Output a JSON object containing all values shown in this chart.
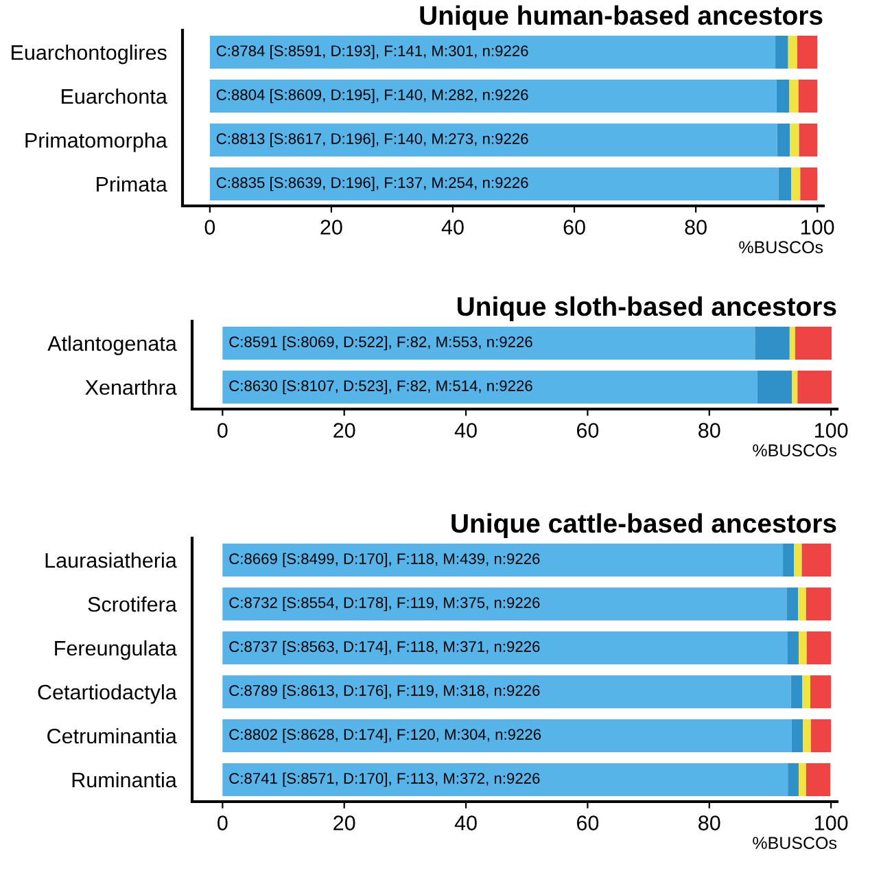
{
  "chart_data": [
    {
      "type": "bar",
      "orientation": "horizontal",
      "stacked": true,
      "title": "Unique human-based ancestors",
      "xlabel": "%BUSCOs",
      "categories": [
        "Euarchontoglires",
        "Euarchonta",
        "Primatomorpha",
        "Primata"
      ],
      "series": [
        {
          "color": "#56b4e9",
          "values": [
            93.1,
            93.3,
            93.4,
            93.6
          ],
          "value_labels": [
            "C:8784 [S:8591, D:193], F:141, M:301, n:9226",
            "C:8804 [S:8609, D:195], F:140, M:282, n:9226",
            "C:8813 [S:8617, D:196], F:140, M:273, n:9226",
            "C:8835 [S:8639, D:196], F:137, M:254, n:9226"
          ]
        },
        {
          "color": "#3090c8",
          "values": [
            2.1,
            2.1,
            2.1,
            2.1
          ]
        },
        {
          "color": "#f0e442",
          "values": [
            1.5,
            1.5,
            1.5,
            1.5
          ]
        },
        {
          "color": "#ef4444",
          "values": [
            3.3,
            3.1,
            3.0,
            2.8
          ]
        }
      ],
      "xlim": [
        -4.5,
        101
      ],
      "xticks": [
        0,
        20,
        40,
        60,
        80,
        100
      ],
      "grid": false,
      "legend": false
    },
    {
      "type": "bar",
      "orientation": "horizontal",
      "stacked": true,
      "title": "Unique sloth-based ancestors",
      "xlabel": "%BUSCOs",
      "categories": [
        "Atlantogenata",
        "Xenarthra"
      ],
      "series": [
        {
          "color": "#56b4e9",
          "values": [
            87.5,
            87.9
          ],
          "value_labels": [
            "C:8591 [S:8069, D:522], F:82, M:553, n:9226",
            "C:8630 [S:8107, D:523], F:82, M:514, n:9226"
          ]
        },
        {
          "color": "#3090c8",
          "values": [
            5.7,
            5.7
          ]
        },
        {
          "color": "#f0e442",
          "values": [
            0.9,
            0.9
          ]
        },
        {
          "color": "#ef4444",
          "values": [
            6.0,
            5.6
          ]
        }
      ],
      "xlim": [
        -5,
        101
      ],
      "xticks": [
        0,
        20,
        40,
        60,
        80,
        100
      ],
      "grid": false,
      "legend": false
    },
    {
      "type": "bar",
      "orientation": "horizontal",
      "stacked": true,
      "title": "Unique cattle-based ancestors",
      "xlabel": "%BUSCOs",
      "categories": [
        "Laurasiatheria",
        "Scrotifera",
        "Fereungulata",
        "Cetartiodactyla",
        "Cetruminantia",
        "Ruminantia"
      ],
      "series": [
        {
          "color": "#56b4e9",
          "values": [
            92.1,
            92.7,
            92.8,
            93.4,
            93.5,
            92.9
          ],
          "value_labels": [
            "C:8669 [S:8499, D:170], F:118, M:439, n:9226",
            "C:8732 [S:8554, D:178], F:119, M:375, n:9226",
            "C:8737 [S:8563, D:174], F:118, M:371, n:9226",
            "C:8789 [S:8613, D:176], F:119, M:318, n:9226",
            "C:8802 [S:8628, D:174], F:120, M:304, n:9226",
            "C:8741 [S:8571, D:170], F:113, M:372, n:9226"
          ]
        },
        {
          "color": "#3090c8",
          "values": [
            1.8,
            1.9,
            1.9,
            1.9,
            1.9,
            1.8
          ]
        },
        {
          "color": "#f0e442",
          "values": [
            1.3,
            1.3,
            1.3,
            1.3,
            1.3,
            1.2
          ]
        },
        {
          "color": "#ef4444",
          "values": [
            4.8,
            4.1,
            4.0,
            3.4,
            3.3,
            4.0
          ]
        }
      ],
      "xlim": [
        -5,
        101
      ],
      "xticks": [
        0,
        20,
        40,
        60,
        80,
        100
      ],
      "grid": false,
      "legend": false
    }
  ]
}
